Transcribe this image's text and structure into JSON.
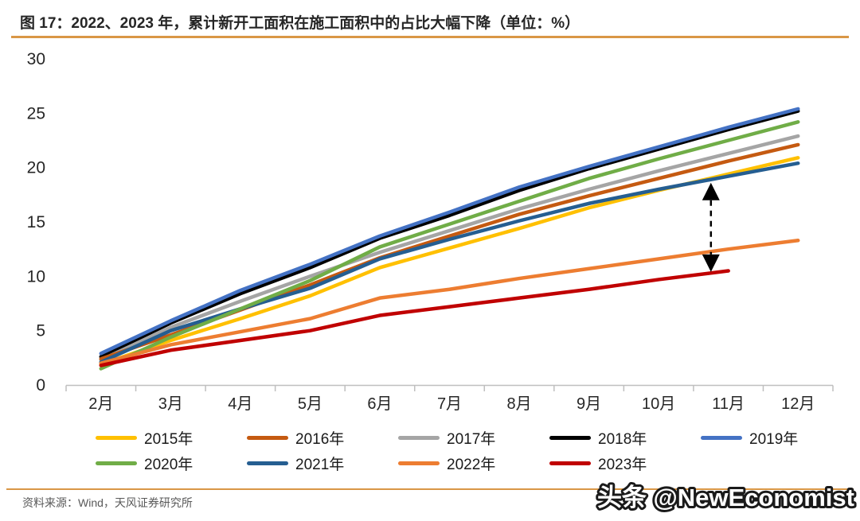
{
  "page": {
    "title": "图 17：2022、2023 年，累计新开工面积在施工面积中的占比大幅下降（单位：%）",
    "source": "资料来源：Wind，天风证券研究所",
    "watermark": "头条 @NewEconomist",
    "accent_rule_color": "#D99746"
  },
  "chart_data": {
    "type": "line",
    "title": "图 17：2022、2023 年，累计新开工面积在施工面积中的占比大幅下降（单位：%）",
    "unit": "%",
    "xlabel": "",
    "ylabel": "",
    "ylim": [
      0,
      30
    ],
    "yticks": [
      0,
      5,
      10,
      15,
      20,
      25,
      30
    ],
    "grid": false,
    "legend_position": "bottom",
    "categories": [
      "2月",
      "3月",
      "4月",
      "5月",
      "6月",
      "7月",
      "8月",
      "9月",
      "10月",
      "11月",
      "12月"
    ],
    "series": [
      {
        "name": "2015年",
        "color": "#FFC000",
        "values": [
          1.9,
          4.1,
          6.1,
          8.2,
          10.8,
          12.6,
          14.4,
          16.3,
          17.9,
          19.4,
          20.9
        ]
      },
      {
        "name": "2016年",
        "color": "#C55A11",
        "values": [
          2.4,
          4.6,
          6.9,
          9.2,
          11.7,
          13.7,
          15.7,
          17.4,
          19.0,
          20.6,
          22.1
        ]
      },
      {
        "name": "2017年",
        "color": "#A5A5A5",
        "values": [
          2.3,
          5.3,
          7.7,
          10.0,
          12.2,
          14.2,
          16.2,
          18.0,
          19.7,
          21.3,
          22.9
        ]
      },
      {
        "name": "2018年",
        "color": "#000000",
        "values": [
          2.6,
          5.7,
          8.4,
          10.8,
          13.5,
          15.6,
          17.9,
          19.9,
          21.7,
          23.5,
          25.2
        ]
      },
      {
        "name": "2019年",
        "color": "#4472C4",
        "values": [
          2.9,
          5.9,
          8.7,
          11.1,
          13.7,
          15.9,
          18.2,
          20.1,
          21.9,
          23.7,
          25.4
        ]
      },
      {
        "name": "2020年",
        "color": "#70AD47",
        "values": [
          1.5,
          4.4,
          7.0,
          9.6,
          12.7,
          14.8,
          16.9,
          19.0,
          20.8,
          22.5,
          24.2
        ]
      },
      {
        "name": "2021年",
        "color": "#255E91",
        "values": [
          2.1,
          5.0,
          7.0,
          8.9,
          11.6,
          13.4,
          15.1,
          16.7,
          18.0,
          19.2,
          20.4
        ]
      },
      {
        "name": "2022年",
        "color": "#ED7D31",
        "values": [
          2.0,
          3.7,
          4.9,
          6.1,
          8.0,
          8.8,
          9.8,
          10.7,
          11.6,
          12.5,
          13.3
        ]
      },
      {
        "name": "2023年",
        "color": "#C00000",
        "values": [
          1.8,
          3.2,
          4.1,
          5.0,
          6.4,
          7.2,
          8.0,
          8.8,
          9.7,
          10.5,
          null
        ]
      }
    ],
    "annotation": {
      "type": "double-headed-arrow",
      "style": "dashed",
      "color": "#000000",
      "category_index": 8.75,
      "from_value": 18.6,
      "to_value": 10.4
    }
  }
}
